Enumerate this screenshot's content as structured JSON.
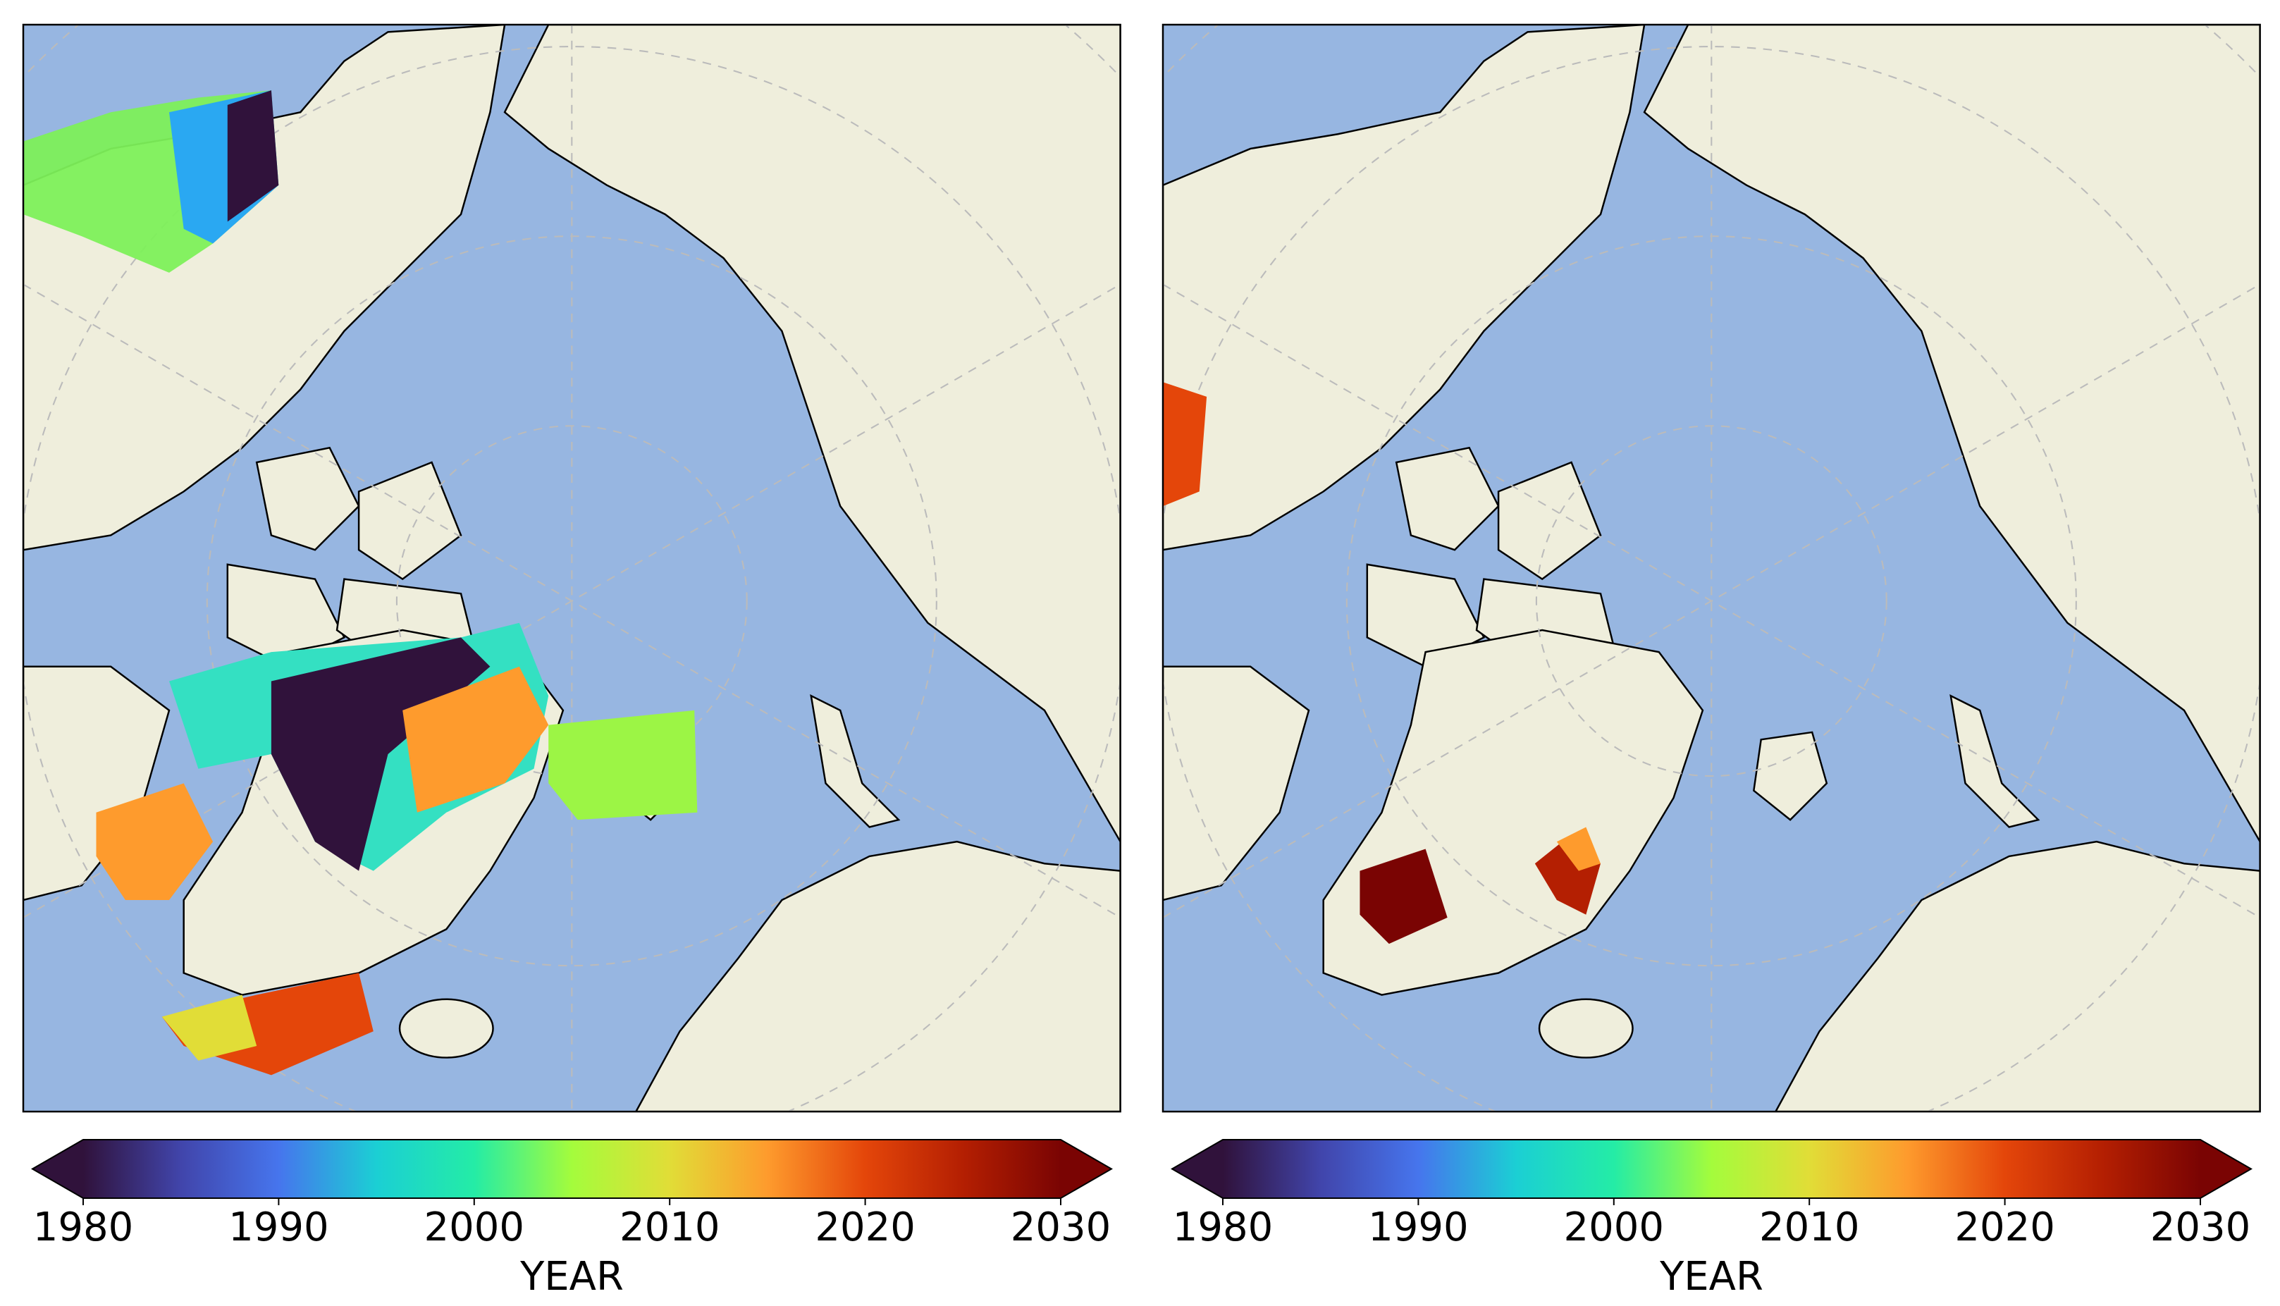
{
  "panels": [
    {
      "colorbar": {
        "label": "YEAR",
        "lim": [
          1980,
          2030
        ],
        "ticks": [
          1980,
          1990,
          2000,
          2010,
          2020,
          2030
        ]
      }
    },
    {
      "colorbar": {
        "label": "YEAR",
        "lim": [
          1980,
          2030
        ],
        "ticks": [
          1980,
          1990,
          2000,
          2010,
          2020,
          2030
        ]
      }
    }
  ]
}
